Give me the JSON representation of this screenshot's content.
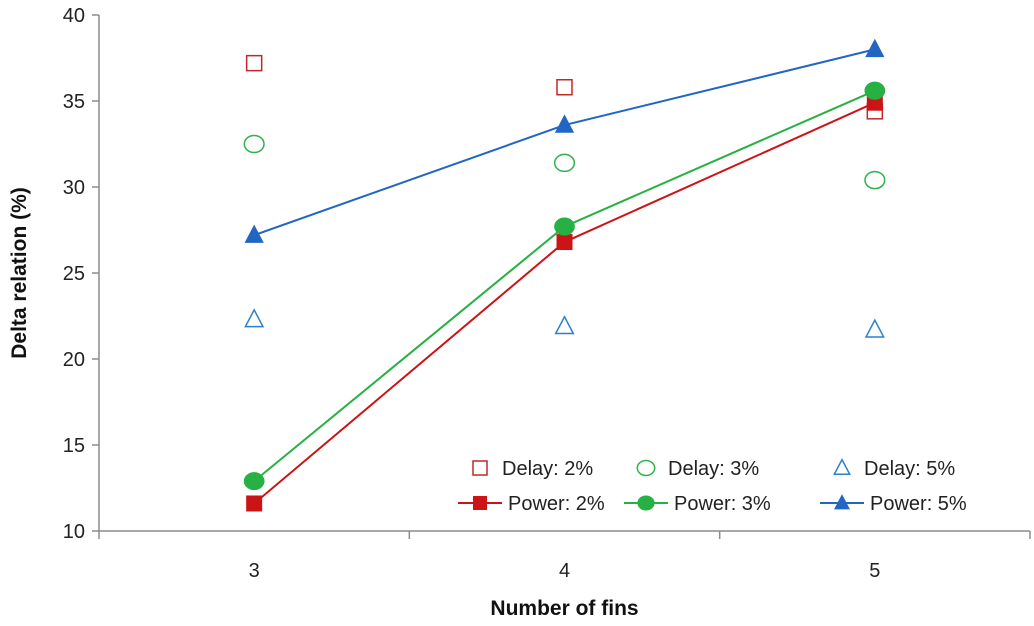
{
  "chart_data": {
    "type": "scatter",
    "title": "",
    "xlabel": "Number of fins",
    "ylabel": "Delta relation (%)",
    "categories": [
      "3",
      "4",
      "5"
    ],
    "x": [
      3,
      4,
      5
    ],
    "ylim": [
      10,
      40
    ],
    "yticks": [
      "10",
      "15",
      "20",
      "25",
      "30",
      "35",
      "40"
    ],
    "grid": false,
    "legend_position": "bottom-right",
    "series": [
      {
        "name": "Delay: 2%",
        "values": [
          37.2,
          35.8,
          34.4
        ],
        "marker": "square-open",
        "line": false,
        "color": "#c0282a"
      },
      {
        "name": "Delay: 3%",
        "values": [
          32.5,
          31.4,
          30.4
        ],
        "marker": "circle-open",
        "line": false,
        "color": "#2db34a"
      },
      {
        "name": "Delay: 5%",
        "values": [
          22.3,
          21.9,
          21.7
        ],
        "marker": "triangle-open",
        "line": false,
        "color": "#2e7fcc"
      },
      {
        "name": "Power: 2%",
        "values": [
          11.6,
          26.8,
          34.9
        ],
        "marker": "square-filled",
        "line": true,
        "color": "#cc1417"
      },
      {
        "name": "Power: 3%",
        "values": [
          12.9,
          27.7,
          35.6
        ],
        "marker": "circle-filled",
        "line": true,
        "color": "#27b043"
      },
      {
        "name": "Power: 5%",
        "values": [
          27.2,
          33.6,
          38.0
        ],
        "marker": "triangle-filled",
        "line": true,
        "color": "#2266c4"
      }
    ]
  }
}
